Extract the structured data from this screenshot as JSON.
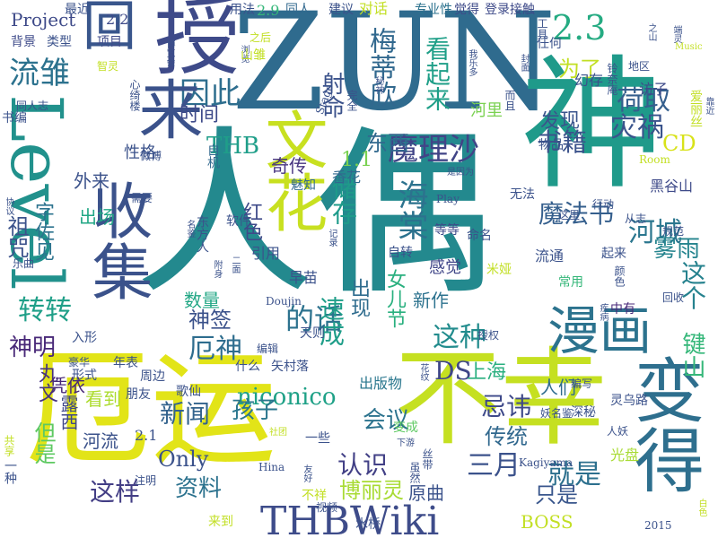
{
  "words": [
    {
      "text": "人偶",
      "color": "#23898e"
    },
    {
      "text": "ZUN",
      "color": "#2f6b8e"
    },
    {
      "text": "厄运",
      "color": "#e2e418"
    },
    {
      "text": "不幸",
      "color": "#c5e021"
    },
    {
      "text": "Level",
      "color": "#21918c"
    },
    {
      "text": "变得",
      "color": "#2e6f8e"
    },
    {
      "text": "魔理沙",
      "color": "#414487"
    },
    {
      "text": "因此",
      "color": "#2e6e8e"
    },
    {
      "text": "文花",
      "color": "#c8e020"
    },
    {
      "text": "授",
      "color": "#3e4a89"
    },
    {
      "text": "收集",
      "color": "#3b528b"
    },
    {
      "text": "来",
      "color": "#3b528b"
    },
    {
      "text": "回",
      "color": "#39568c"
    },
    {
      "text": "神",
      "color": "#1f9a8a"
    },
    {
      "text": "漫画",
      "color": "#2c738e"
    },
    {
      "text": "THBWiki",
      "color": "#3e4c8a"
    },
    {
      "text": "2.3",
      "color": "#25ab82"
    },
    {
      "text": "荷取",
      "color": "#355f8d"
    },
    {
      "text": "流雏",
      "color": "#2c728e"
    },
    {
      "text": "灾祸",
      "color": "#3a548c"
    },
    {
      "text": "河城",
      "color": "#2a768e"
    },
    {
      "text": "魔法书",
      "color": "#355f8d"
    },
    {
      "text": "书籍",
      "color": "#3b528b"
    },
    {
      "text": "神明",
      "color": "#482878"
    },
    {
      "text": "厄神",
      "color": "#2e6d8e"
    },
    {
      "text": "这种",
      "color": "#228c8d"
    },
    {
      "text": "的话",
      "color": "#2c728e"
    },
    {
      "text": "转转",
      "color": "#1f9f88"
    },
    {
      "text": "键山",
      "color": "#35b779"
    },
    {
      "text": "DS",
      "color": "#3f4788"
    },
    {
      "text": "上海",
      "color": "#29af7f"
    },
    {
      "text": "新闻",
      "color": "#33638d"
    },
    {
      "text": "会议",
      "color": "#2c738e"
    },
    {
      "text": "忌讳",
      "color": "#3e4989"
    },
    {
      "text": "认识",
      "color": "#424086"
    },
    {
      "text": "三月",
      "color": "#3b528b"
    },
    {
      "text": "这样",
      "color": "#433e85"
    },
    {
      "text": "资料",
      "color": "#2c728e"
    },
    {
      "text": "博丽灵",
      "color": "#a8db34"
    },
    {
      "text": "传统",
      "color": "#31688e"
    },
    {
      "text": "只是",
      "color": "#39568c"
    },
    {
      "text": "就是",
      "color": "#2d708e"
    },
    {
      "text": "Only",
      "color": "#3b528b"
    },
    {
      "text": "niconico",
      "color": "#1fa187"
    },
    {
      "text": "孩子",
      "color": "#2a768e"
    },
    {
      "text": "时间",
      "color": "#3e4a89"
    },
    {
      "text": "发现",
      "color": "#3a548c"
    },
    {
      "text": "THB",
      "color": "#1f9e89"
    },
    {
      "text": "CD",
      "color": "#d8e219"
    },
    {
      "text": "雾雨",
      "color": "#25848e"
    },
    {
      "text": "这个",
      "color": "#26828e"
    },
    {
      "text": "梅蒂欣",
      "color": "#31688e"
    },
    {
      "text": "射命",
      "color": "#3b528b"
    },
    {
      "text": "看起来",
      "color": "#1f9f88"
    },
    {
      "text": "为了",
      "color": "#c2df23"
    },
    {
      "text": "储存",
      "color": "#1e9b8a"
    },
    {
      "text": "速成",
      "color": "#1f9e89"
    },
    {
      "text": "出现",
      "color": "#2f6c8e"
    },
    {
      "text": "海棠",
      "color": "#2c728e"
    },
    {
      "text": "祖咒",
      "color": "#3b528b"
    },
    {
      "text": "字佐见",
      "color": "#2c738e"
    },
    {
      "text": "神签",
      "color": "#3b528b"
    },
    {
      "text": "东西",
      "color": "#31688e"
    },
    {
      "text": "1.1",
      "color": "#7ad151"
    },
    {
      "text": "丸文",
      "color": "#46337f"
    },
    {
      "text": "露西",
      "color": "#3f4788"
    },
    {
      "text": "但是",
      "color": "#5ec962"
    },
    {
      "text": "凭依",
      "color": "#482878"
    },
    {
      "text": "看到",
      "color": "#addc30"
    },
    {
      "text": "河流",
      "color": "#3b528b"
    },
    {
      "text": "原曲",
      "color": "#3b528b"
    },
    {
      "text": "人们",
      "color": "#2f6c8e"
    },
    {
      "text": "出版物",
      "color": "#2a778e"
    },
    {
      "text": "新作",
      "color": "#2c728e"
    },
    {
      "text": "BOSS",
      "color": "#c2df23"
    },
    {
      "text": "女儿节",
      "color": "#2ab07f"
    },
    {
      "text": "红色",
      "color": "#3e4a89"
    },
    {
      "text": "数量",
      "color": "#22a785"
    },
    {
      "text": "外来",
      "color": "#3b528b"
    },
    {
      "text": "出场",
      "color": "#22a785"
    },
    {
      "text": "Project",
      "color": "#3e4a89"
    },
    {
      "text": "奇传",
      "color": "#46337f"
    },
    {
      "text": "性格",
      "color": "#3b528b"
    },
    {
      "text": "感觉",
      "color": "#404688"
    },
    {
      "text": "2.2",
      "color": "#3e4a89"
    },
    {
      "text": "项目",
      "color": "#3e4a89"
    },
    {
      "text": "2.9",
      "color": "#35b779"
    },
    {
      "text": "2.1",
      "color": "#3b528b"
    },
    {
      "text": "最近",
      "color": "#3b528b"
    },
    {
      "text": "背景",
      "color": "#3e4a89"
    },
    {
      "text": "类型",
      "color": "#3b528b"
    },
    {
      "text": "用法",
      "color": "#3b528b"
    },
    {
      "text": "同人",
      "color": "#31688e"
    },
    {
      "text": "建议",
      "color": "#3b528b"
    },
    {
      "text": "对话",
      "color": "#c2df23"
    },
    {
      "text": "专业性",
      "color": "#2c728e"
    },
    {
      "text": "觉得",
      "color": "#3e4a89"
    },
    {
      "text": "登录",
      "color": "#3e4a89"
    },
    {
      "text": "接触",
      "color": "#3e4a89"
    },
    {
      "text": "任何",
      "color": "#3b528b"
    },
    {
      "text": "幻存",
      "color": "#3b528b"
    },
    {
      "text": "访子",
      "color": "#3e4a89"
    },
    {
      "text": "黑谷山",
      "color": "#3e4a89"
    },
    {
      "text": "河里",
      "color": "#7ad151"
    },
    {
      "text": "魅知",
      "color": "#31688e"
    },
    {
      "text": "香花",
      "color": "#31688e"
    },
    {
      "text": "自机",
      "color": "#31688e"
    },
    {
      "text": "软件",
      "color": "#3b528b"
    },
    {
      "text": "东方人",
      "color": "#3b528b"
    },
    {
      "text": "引用",
      "color": "#3b528b"
    },
    {
      "text": "早苗",
      "color": "#3b528b"
    },
    {
      "text": "无法",
      "color": "#3b528b"
    },
    {
      "text": "命名",
      "color": "#3b528b"
    },
    {
      "text": "等等",
      "color": "#3e4a89"
    },
    {
      "text": "自转",
      "color": "#3b528b"
    },
    {
      "text": "流通",
      "color": "#3b528b"
    },
    {
      "text": "常用",
      "color": "#35b779"
    },
    {
      "text": "中有",
      "color": "#482878"
    },
    {
      "text": "授权",
      "color": "#3b528b"
    },
    {
      "text": "天则",
      "color": "#3b528b"
    },
    {
      "text": "年表",
      "color": "#3b528b"
    },
    {
      "text": "周边",
      "color": "#3b528b"
    },
    {
      "text": "形式",
      "color": "#3b528b"
    },
    {
      "text": "朋友",
      "color": "#3b528b"
    },
    {
      "text": "歌仙",
      "color": "#3b528b"
    },
    {
      "text": "什么",
      "color": "#3b528b"
    },
    {
      "text": "矢村落",
      "color": "#3b528b"
    },
    {
      "text": "编写",
      "color": "#3b528b"
    },
    {
      "text": "灵乌路",
      "color": "#3b528b"
    },
    {
      "text": "深秘",
      "color": "#3b528b"
    },
    {
      "text": "妖名鉴",
      "color": "#3b528b"
    },
    {
      "text": "人妖",
      "color": "#3b528b"
    },
    {
      "text": "光盘",
      "color": "#a8db34"
    },
    {
      "text": "变成",
      "color": "#5ec962"
    },
    {
      "text": "一些",
      "color": "#3b528b"
    },
    {
      "text": "Hina",
      "color": "#3b528b"
    },
    {
      "text": "Kagiyama",
      "color": "#3b528b"
    },
    {
      "text": "视频",
      "color": "#3b528b"
    },
    {
      "text": "水桥",
      "color": "#3b528b"
    },
    {
      "text": "2015",
      "color": "#3b528b"
    },
    {
      "text": "不祥",
      "color": "#c2df23"
    },
    {
      "text": "来到",
      "color": "#c2df23"
    },
    {
      "text": "共享",
      "color": "#c2df23"
    },
    {
      "text": "一种",
      "color": "#3b528b"
    },
    {
      "text": "注明",
      "color": "#3b528b"
    },
    {
      "text": "乐曲",
      "color": "#3b528b"
    },
    {
      "text": "米娅",
      "color": "#c2df23"
    },
    {
      "text": "Play",
      "color": "#3b528b"
    },
    {
      "text": "Room",
      "color": "#c2df23"
    },
    {
      "text": "Music",
      "color": "#c2df23"
    },
    {
      "text": "Stage",
      "color": "#3b528b"
    },
    {
      "text": "Doujin",
      "color": "#3b528b"
    },
    {
      "text": "物品",
      "color": "#3b528b"
    },
    {
      "text": "地区",
      "color": "#3b528b"
    },
    {
      "text": "铃奈庵",
      "color": "#3b528b"
    },
    {
      "text": "工具",
      "color": "#3b528b"
    },
    {
      "text": "而且",
      "color": "#3b528b"
    },
    {
      "text": "完全",
      "color": "#3b528b"
    },
    {
      "text": "浏览",
      "color": "#3b528b"
    },
    {
      "text": "博览会",
      "color": "#3b528b"
    },
    {
      "text": "智灵",
      "color": "#c2df23"
    },
    {
      "text": "心绮楼",
      "color": "#3b528b"
    },
    {
      "text": "同人志",
      "color": "#3b528b"
    },
    {
      "text": "书编",
      "color": "#3b528b"
    },
    {
      "text": "之后",
      "color": "#c2df23"
    },
    {
      "text": "山雏",
      "color": "#c2df23"
    },
    {
      "text": "入形",
      "color": "#3b528b"
    },
    {
      "text": "豪华",
      "color": "#3b528b"
    },
    {
      "text": "颜色",
      "color": "#3b528b"
    },
    {
      "text": "回收",
      "color": "#3b528b"
    },
    {
      "text": "从志",
      "color": "#3b528b"
    },
    {
      "text": "这里",
      "color": "#3b528b"
    },
    {
      "text": "起来",
      "color": "#3b528b"
    },
    {
      "text": "规范",
      "color": "#3b528b"
    },
    {
      "text": "行动",
      "color": "#3b528b"
    },
    {
      "text": "是因为",
      "color": "#3b528b"
    },
    {
      "text": "二面",
      "color": "#3b528b"
    },
    {
      "text": "需要",
      "color": "#3b528b"
    },
    {
      "text": "丝带",
      "color": "#3b528b"
    },
    {
      "text": "虽然",
      "color": "#3b528b"
    },
    {
      "text": "下游",
      "color": "#3b528b"
    },
    {
      "text": "社团",
      "color": "#c2df23"
    },
    {
      "text": "友好",
      "color": "#3b528b"
    },
    {
      "text": "编辑",
      "color": "#3b528b"
    },
    {
      "text": "协议",
      "color": "#3b528b"
    },
    {
      "text": "微博",
      "color": "#3b528b"
    },
    {
      "text": "名鉴",
      "color": "#3b528b"
    },
    {
      "text": "记录",
      "color": "#3b528b"
    },
    {
      "text": "附身",
      "color": "#3b528b"
    },
    {
      "text": "封面",
      "color": "#3b528b"
    },
    {
      "text": "秘神",
      "color": "#3b528b"
    },
    {
      "text": "我乐多",
      "color": "#3b528b"
    },
    {
      "text": "之山",
      "color": "#3b528b"
    },
    {
      "text": "端灵",
      "color": "#3b528b"
    },
    {
      "text": "爱丽丝",
      "color": "#c2df23"
    },
    {
      "text": "靠近",
      "color": "#3b528b"
    },
    {
      "text": "疾病",
      "color": "#3b528b"
    },
    {
      "text": "白色",
      "color": "#c2df23"
    },
    {
      "text": "花纹",
      "color": "#3b528b"
    }
  ]
}
